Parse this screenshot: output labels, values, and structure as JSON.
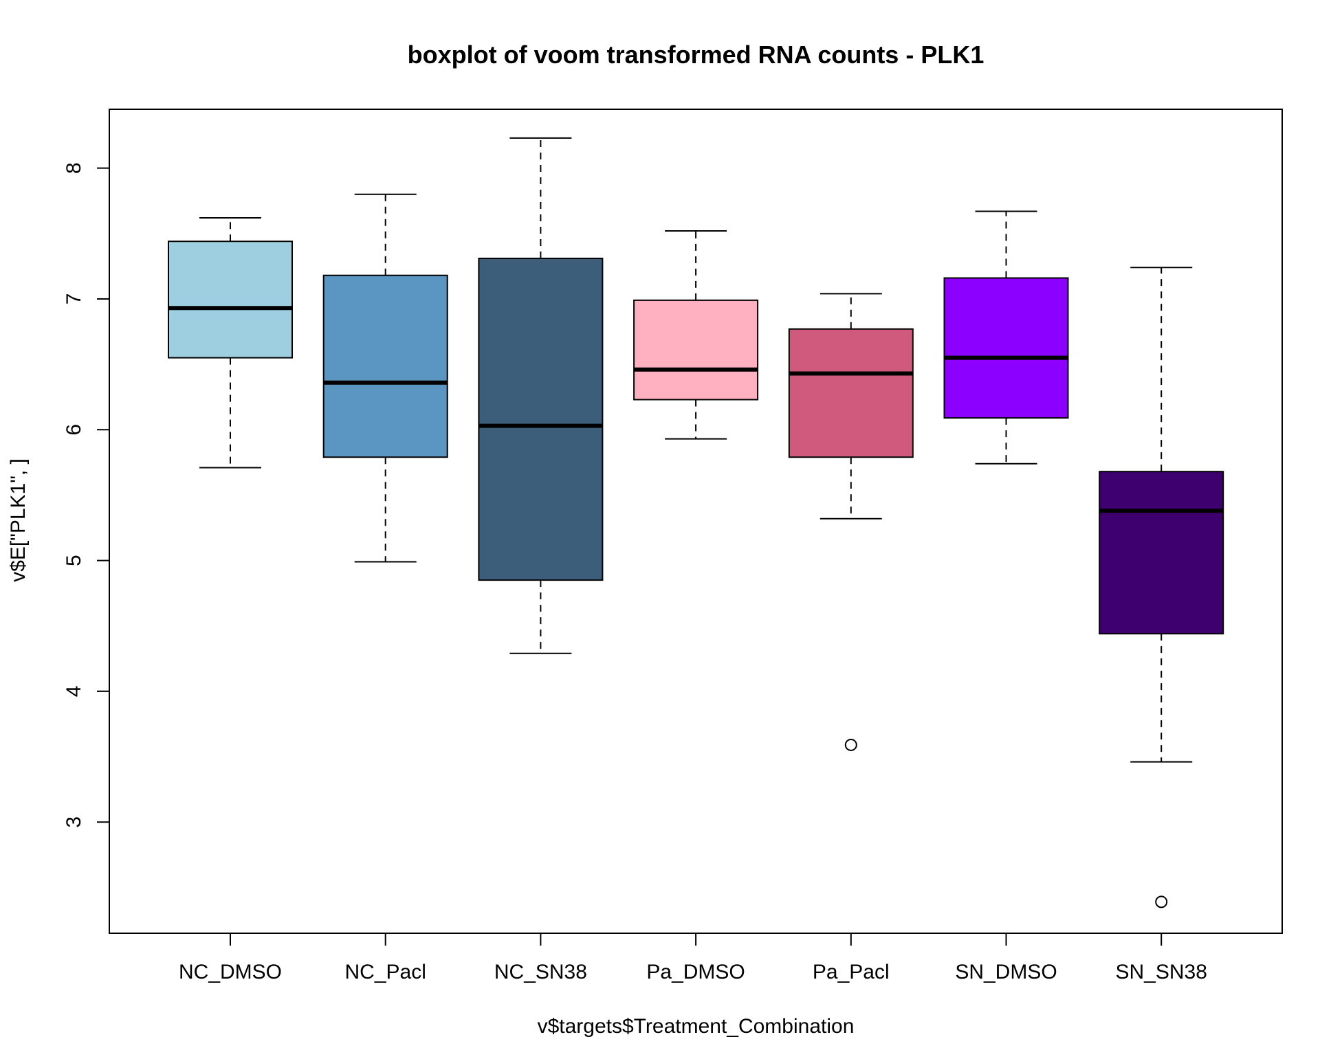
{
  "chart_data": {
    "type": "boxplot",
    "title": "boxplot of voom transformed RNA counts - PLK1",
    "xlabel": "v$targets$Treatment_Combination",
    "ylabel": "v$E[\"PLK1\", ]",
    "ylim": [
      2.15,
      8.45
    ],
    "yticks": [
      3,
      4,
      5,
      6,
      7,
      8
    ],
    "grid": false,
    "legend": "none",
    "categories": [
      "NC_DMSO",
      "NC_Pacl",
      "NC_SN38",
      "Pa_DMSO",
      "Pa_Pacl",
      "SN_DMSO",
      "SN_SN38"
    ],
    "boxes": [
      {
        "name": "NC_DMSO",
        "color": "#9ecfe0",
        "whisker_low": 5.71,
        "q1": 6.55,
        "median": 6.93,
        "q3": 7.44,
        "whisker_high": 7.62,
        "outliers": []
      },
      {
        "name": "NC_Pacl",
        "color": "#5b96c3",
        "whisker_low": 4.99,
        "q1": 5.79,
        "median": 6.36,
        "q3": 7.18,
        "whisker_high": 7.8,
        "outliers": []
      },
      {
        "name": "NC_SN38",
        "color": "#3c5e7b",
        "whisker_low": 4.29,
        "q1": 4.85,
        "median": 6.03,
        "q3": 7.31,
        "whisker_high": 8.23,
        "outliers": []
      },
      {
        "name": "Pa_DMSO",
        "color": "#ffb1c2",
        "whisker_low": 5.93,
        "q1": 6.23,
        "median": 6.46,
        "q3": 6.99,
        "whisker_high": 7.52,
        "outliers": []
      },
      {
        "name": "Pa_Pacl",
        "color": "#d05a7e",
        "whisker_low": 5.32,
        "q1": 5.79,
        "median": 6.43,
        "q3": 6.77,
        "whisker_high": 7.04,
        "outliers": [
          3.59
        ]
      },
      {
        "name": "SN_DMSO",
        "color": "#8b00ff",
        "whisker_low": 5.74,
        "q1": 6.09,
        "median": 6.55,
        "q3": 7.16,
        "whisker_high": 7.67,
        "outliers": []
      },
      {
        "name": "SN_SN38",
        "color": "#3f006f",
        "whisker_low": 3.46,
        "q1": 4.44,
        "median": 5.38,
        "q3": 5.68,
        "whisker_high": 7.24,
        "outliers": [
          2.39
        ]
      }
    ]
  }
}
